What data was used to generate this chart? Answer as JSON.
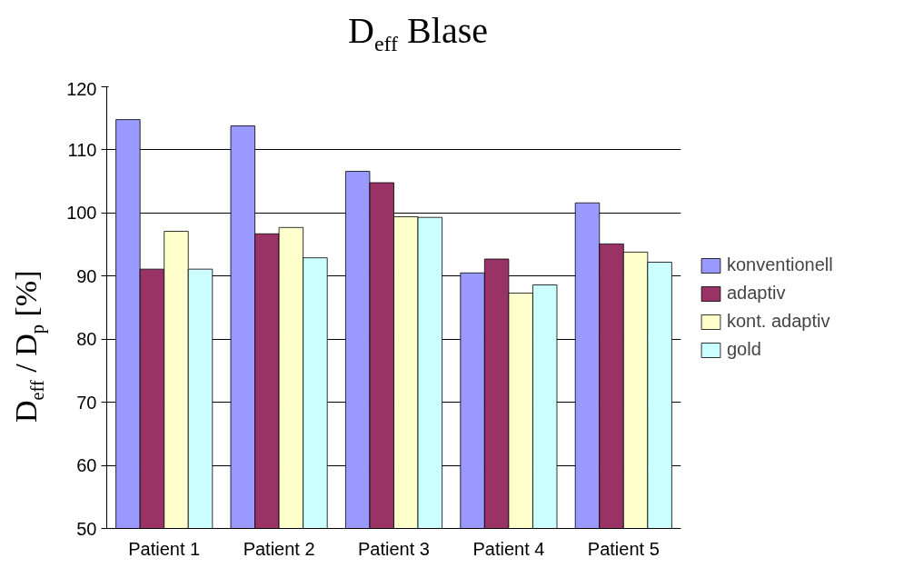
{
  "chart_data": {
    "type": "bar",
    "title": "D$_{eff}$ Blase",
    "ylabel": "D$_{eff}$ / D$_{p}$ [%]",
    "categories": [
      "Patient 1",
      "Patient 2",
      "Patient 3",
      "Patient 4",
      "Patient 5"
    ],
    "series": [
      {
        "name": "konventionell",
        "color": "#9999ff",
        "values": [
          114.8,
          113.8,
          106.6,
          90.5,
          101.6
        ]
      },
      {
        "name": "adaptiv",
        "color": "#993366",
        "values": [
          91.1,
          96.7,
          104.8,
          92.7,
          95.1
        ]
      },
      {
        "name": "kont. adaptiv",
        "color": "#ffffcc",
        "values": [
          97.1,
          97.7,
          99.4,
          87.3,
          93.8
        ]
      },
      {
        "name": "gold",
        "color": "#ccffff",
        "values": [
          91.1,
          92.9,
          99.3,
          88.6,
          92.2
        ]
      }
    ],
    "ylim": [
      50,
      120
    ],
    "yticks": [
      50,
      60,
      70,
      80,
      90,
      100,
      110,
      120
    ],
    "grid": "y",
    "legend": "right"
  }
}
